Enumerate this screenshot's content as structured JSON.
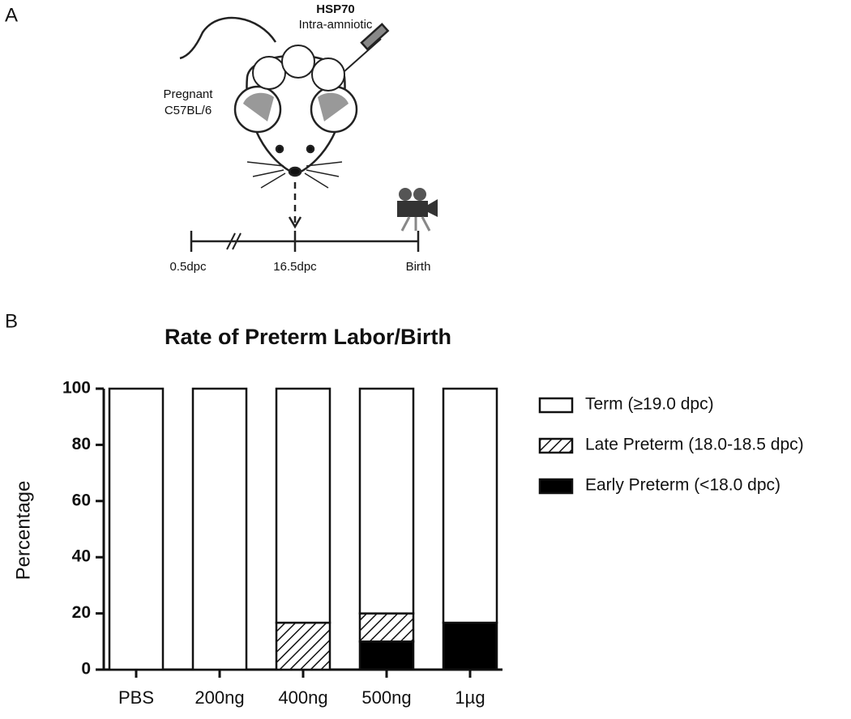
{
  "panel_a": {
    "label": "A",
    "agent": "HSP70",
    "route": "Intra-amniotic",
    "animal": [
      "Pregnant",
      "C57BL/6"
    ],
    "timeline": [
      "0.5dpc",
      "16.5dpc",
      "Birth"
    ]
  },
  "panel_b": {
    "label": "B"
  },
  "chart_data": {
    "type": "stacked-bar",
    "title": "Rate of Preterm Labor/Birth",
    "y_label": "Percentage",
    "categories": [
      "PBS",
      "200ng",
      "400ng",
      "500ng",
      "1µg"
    ],
    "series": [
      {
        "name": "Early Preterm (<18.0 dpc)",
        "color": "#000000",
        "hatch": false,
        "values": [
          0,
          0,
          0,
          10,
          16.7
        ]
      },
      {
        "name": "Late Preterm (18.0-18.5 dpc)",
        "color": "#000000",
        "hatch": true,
        "values": [
          0,
          0,
          16.7,
          10,
          0
        ]
      },
      {
        "name": "Term (≥19.0 dpc)",
        "color": "#ffffff",
        "hatch": false,
        "values": [
          100,
          100,
          83.3,
          80,
          83.3
        ]
      }
    ],
    "ylim": [
      0,
      100
    ],
    "yticks": [
      0,
      20,
      40,
      60,
      80,
      100
    ],
    "grid": false,
    "legend": "right"
  }
}
